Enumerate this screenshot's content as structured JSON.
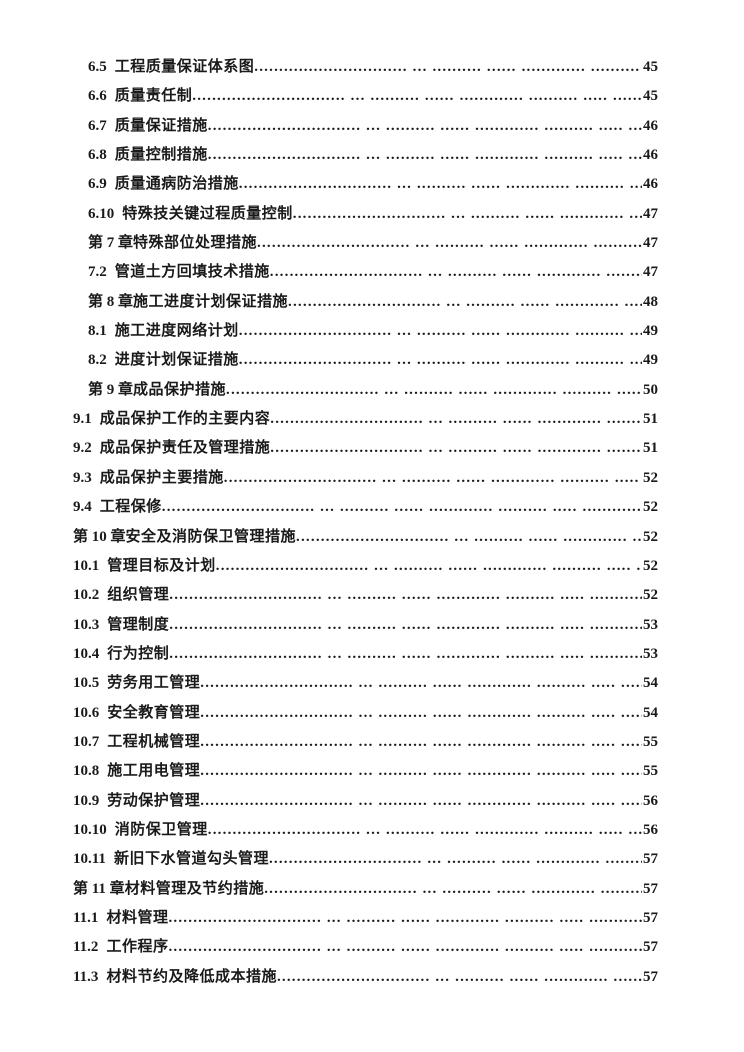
{
  "toc": {
    "entries": [
      {
        "num": "6.5",
        "title": "工程质量保证体系图",
        "page": "45",
        "indent": 1,
        "chapter": false
      },
      {
        "num": "6.6",
        "title": "质量责任制",
        "page": "45",
        "indent": 1,
        "chapter": false
      },
      {
        "num": "6.7",
        "title": "质量保证措施",
        "page": "46",
        "indent": 1,
        "chapter": false
      },
      {
        "num": "6.8",
        "title": "质量控制措施",
        "page": "46",
        "indent": 1,
        "chapter": false
      },
      {
        "num": "6.9",
        "title": "质量通病防治措施",
        "page": "46",
        "indent": 1,
        "chapter": false
      },
      {
        "num": "6.10",
        "title": "特殊技关键过程质量控制",
        "page": "47",
        "indent": 1,
        "chapter": false
      },
      {
        "num": "第 7 章",
        "title": "特殊部位处理措施",
        "page": "47",
        "indent": 1,
        "chapter": true
      },
      {
        "num": "7.2",
        "title": "管道土方回填技术措施",
        "page": "47",
        "indent": 1,
        "chapter": false
      },
      {
        "num": "第 8 章",
        "title": "施工进度计划保证措施",
        "page": "48",
        "indent": 1,
        "chapter": true
      },
      {
        "num": "8.1",
        "title": "施工进度网络计划",
        "page": "49",
        "indent": 1,
        "chapter": false
      },
      {
        "num": "8.2",
        "title": "进度计划保证措施",
        "page": "49",
        "indent": 1,
        "chapter": false
      },
      {
        "num": "第 9 章",
        "title": "成品保护措施",
        "page": "50",
        "indent": 1,
        "chapter": true
      },
      {
        "num": "9.1",
        "title": "成品保护工作的主要内容",
        "page": "51",
        "indent": 0,
        "chapter": false
      },
      {
        "num": "9.2",
        "title": "成品保护责任及管理措施",
        "page": "51",
        "indent": 0,
        "chapter": false
      },
      {
        "num": "9.3",
        "title": "成品保护主要措施",
        "page": "52",
        "indent": 0,
        "chapter": false
      },
      {
        "num": "9.4",
        "title": "工程保修",
        "page": "52",
        "indent": 0,
        "chapter": false
      },
      {
        "num": "第 10 章",
        "title": "安全及消防保卫管理措施",
        "page": "52",
        "indent": 0,
        "chapter": true
      },
      {
        "num": "10.1",
        "title": "管理目标及计划",
        "page": "52",
        "indent": 0,
        "chapter": false
      },
      {
        "num": "10.2",
        "title": "组织管理",
        "page": "52",
        "indent": 0,
        "chapter": false
      },
      {
        "num": "10.3",
        "title": "管理制度",
        "page": "53",
        "indent": 0,
        "chapter": false
      },
      {
        "num": "10.4",
        "title": "行为控制",
        "page": "53",
        "indent": 0,
        "chapter": false
      },
      {
        "num": "10.5",
        "title": "劳务用工管理",
        "page": "54",
        "indent": 0,
        "chapter": false
      },
      {
        "num": "10.6",
        "title": "安全教育管理",
        "page": "54",
        "indent": 0,
        "chapter": false
      },
      {
        "num": "10.7",
        "title": "工程机械管理",
        "page": "55",
        "indent": 0,
        "chapter": false
      },
      {
        "num": "10.8",
        "title": "施工用电管理",
        "page": "55",
        "indent": 0,
        "chapter": false
      },
      {
        "num": "10.9",
        "title": "劳动保护管理",
        "page": "56",
        "indent": 0,
        "chapter": false
      },
      {
        "num": "10.10",
        "title": "消防保卫管理",
        "page": "56",
        "indent": 0,
        "chapter": false
      },
      {
        "num": "10.11",
        "title": "新旧下水管道勾头管理",
        "page": "57",
        "indent": 0,
        "chapter": false
      },
      {
        "num": "第 11 章",
        "title": "材料管理及节约措施",
        "page": "57",
        "indent": 0,
        "chapter": true
      },
      {
        "num": "11.1",
        "title": "材料管理",
        "page": "57",
        "indent": 0,
        "chapter": false
      },
      {
        "num": "11.2",
        "title": "工作程序",
        "page": "57",
        "indent": 0,
        "chapter": false
      },
      {
        "num": "11.3",
        "title": "材料节约及降低成本措施",
        "page": "57",
        "indent": 0,
        "chapter": false
      }
    ]
  },
  "colors": {
    "page_background": "#ffffff",
    "text": "#1a1a1a"
  }
}
